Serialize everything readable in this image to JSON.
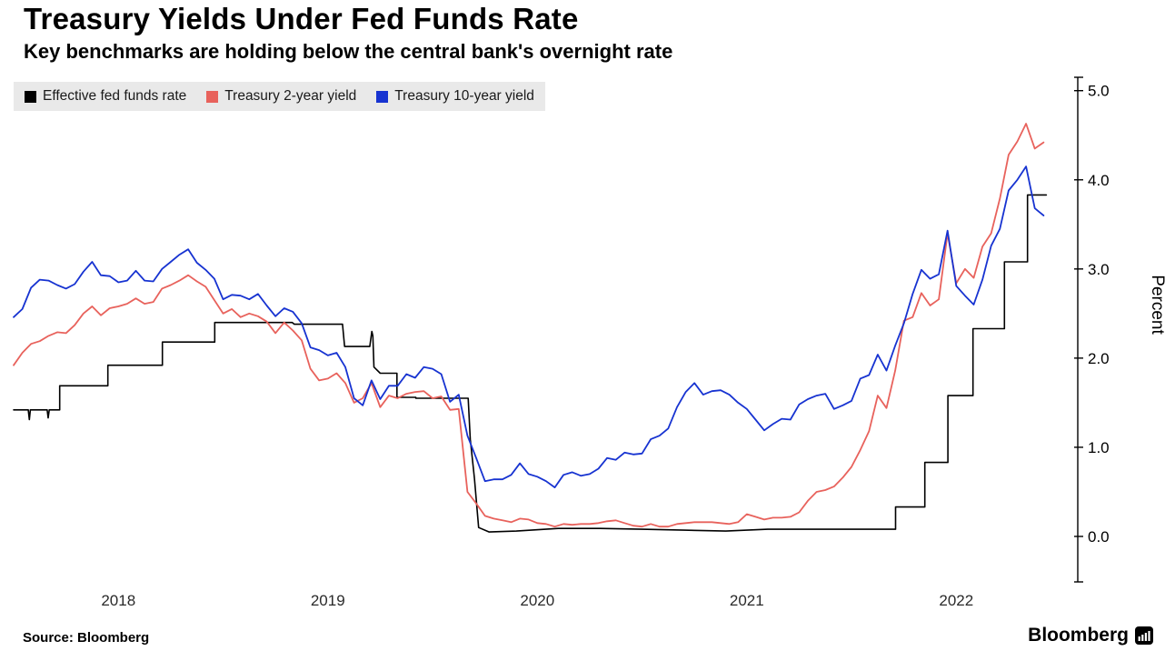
{
  "chart_data": {
    "type": "line",
    "title": "Treasury Yields Under Fed Funds Rate",
    "subtitle": "Key benchmarks are holding below the central bank's overnight rate",
    "ylabel": "Percent",
    "ylim": [
      -0.51,
      5.15
    ],
    "yticks": [
      0.0,
      1.0,
      2.0,
      3.0,
      4.0,
      5.0
    ],
    "x_range": [
      2018.0,
      2023.08
    ],
    "xticks": [
      {
        "value": 2018.5,
        "label": "2018"
      },
      {
        "value": 2019.5,
        "label": "2019"
      },
      {
        "value": 2020.5,
        "label": "2020"
      },
      {
        "value": 2021.5,
        "label": "2021"
      },
      {
        "value": 2022.5,
        "label": "2022"
      }
    ],
    "grid": false,
    "legend_position": "top-left",
    "series": [
      {
        "name": "Effective fed funds rate",
        "color": "#000000",
        "width": 1.6,
        "style": "step",
        "points": [
          [
            2018.0,
            1.42
          ],
          [
            2018.07,
            1.42
          ],
          [
            2018.075,
            1.31
          ],
          [
            2018.08,
            1.42
          ],
          [
            2018.16,
            1.42
          ],
          [
            2018.165,
            1.33
          ],
          [
            2018.17,
            1.42
          ],
          [
            2018.22,
            1.42
          ],
          [
            2018.22,
            1.69
          ],
          [
            2018.45,
            1.69
          ],
          [
            2018.45,
            1.92
          ],
          [
            2018.71,
            1.92
          ],
          [
            2018.71,
            2.18
          ],
          [
            2018.96,
            2.18
          ],
          [
            2018.96,
            2.4
          ],
          [
            2019.33,
            2.4
          ],
          [
            2019.34,
            2.38
          ],
          [
            2019.57,
            2.38
          ],
          [
            2019.58,
            2.13
          ],
          [
            2019.7,
            2.13
          ],
          [
            2019.71,
            2.3
          ],
          [
            2019.715,
            2.25
          ],
          [
            2019.72,
            1.9
          ],
          [
            2019.75,
            1.83
          ],
          [
            2019.83,
            1.83
          ],
          [
            2019.83,
            1.56
          ],
          [
            2019.92,
            1.56
          ],
          [
            2019.92,
            1.55
          ],
          [
            2020.17,
            1.55
          ],
          [
            2020.18,
            1.09
          ],
          [
            2020.2,
            0.65
          ],
          [
            2020.22,
            0.1
          ],
          [
            2020.27,
            0.05
          ],
          [
            2020.4,
            0.06
          ],
          [
            2020.6,
            0.09
          ],
          [
            2020.8,
            0.09
          ],
          [
            2021.0,
            0.08
          ],
          [
            2021.2,
            0.07
          ],
          [
            2021.4,
            0.06
          ],
          [
            2021.6,
            0.08
          ],
          [
            2021.8,
            0.08
          ],
          [
            2022.0,
            0.08
          ],
          [
            2022.21,
            0.08
          ],
          [
            2022.21,
            0.33
          ],
          [
            2022.35,
            0.33
          ],
          [
            2022.35,
            0.83
          ],
          [
            2022.46,
            0.83
          ],
          [
            2022.46,
            1.58
          ],
          [
            2022.58,
            1.58
          ],
          [
            2022.58,
            2.33
          ],
          [
            2022.73,
            2.33
          ],
          [
            2022.73,
            3.08
          ],
          [
            2022.84,
            3.08
          ],
          [
            2022.84,
            3.83
          ],
          [
            2022.93,
            3.83
          ]
        ]
      },
      {
        "name": "Treasury 2-year yield",
        "color": "#e8625c",
        "width": 1.8,
        "x_start": 2018.0,
        "x_step": 0.0416667,
        "values": [
          1.92,
          2.06,
          2.16,
          2.19,
          2.25,
          2.29,
          2.28,
          2.37,
          2.5,
          2.58,
          2.48,
          2.56,
          2.58,
          2.61,
          2.67,
          2.61,
          2.63,
          2.78,
          2.82,
          2.87,
          2.93,
          2.86,
          2.8,
          2.65,
          2.5,
          2.55,
          2.46,
          2.5,
          2.47,
          2.41,
          2.28,
          2.4,
          2.31,
          2.2,
          1.88,
          1.75,
          1.77,
          1.83,
          1.72,
          1.5,
          1.55,
          1.72,
          1.45,
          1.58,
          1.55,
          1.6,
          1.62,
          1.63,
          1.55,
          1.57,
          1.42,
          1.43,
          0.5,
          0.37,
          0.23,
          0.2,
          0.18,
          0.16,
          0.2,
          0.19,
          0.15,
          0.14,
          0.11,
          0.14,
          0.13,
          0.14,
          0.14,
          0.15,
          0.17,
          0.18,
          0.15,
          0.12,
          0.11,
          0.14,
          0.11,
          0.11,
          0.14,
          0.15,
          0.16,
          0.16,
          0.16,
          0.15,
          0.14,
          0.16,
          0.25,
          0.22,
          0.19,
          0.21,
          0.21,
          0.22,
          0.27,
          0.4,
          0.5,
          0.52,
          0.56,
          0.66,
          0.78,
          0.97,
          1.18,
          1.58,
          1.44,
          1.86,
          2.42,
          2.46,
          2.73,
          2.59,
          2.66,
          3.4,
          2.84,
          3.0,
          2.9,
          3.25,
          3.4,
          3.79,
          4.28,
          4.43,
          4.63,
          4.35,
          4.42
        ]
      },
      {
        "name": "Treasury 10-year yield",
        "color": "#1733d1",
        "width": 1.8,
        "x_start": 2018.0,
        "x_step": 0.0416667,
        "values": [
          2.46,
          2.55,
          2.79,
          2.88,
          2.87,
          2.82,
          2.78,
          2.83,
          2.97,
          3.08,
          2.93,
          2.92,
          2.85,
          2.87,
          2.98,
          2.87,
          2.86,
          3.0,
          3.08,
          3.16,
          3.22,
          3.07,
          2.99,
          2.89,
          2.66,
          2.71,
          2.7,
          2.66,
          2.72,
          2.59,
          2.47,
          2.56,
          2.52,
          2.39,
          2.12,
          2.09,
          2.03,
          2.06,
          1.9,
          1.55,
          1.47,
          1.75,
          1.54,
          1.69,
          1.69,
          1.82,
          1.78,
          1.9,
          1.88,
          1.82,
          1.51,
          1.59,
          1.13,
          0.88,
          0.62,
          0.64,
          0.64,
          0.69,
          0.82,
          0.7,
          0.67,
          0.62,
          0.55,
          0.69,
          0.72,
          0.68,
          0.7,
          0.76,
          0.88,
          0.86,
          0.94,
          0.92,
          0.93,
          1.09,
          1.13,
          1.21,
          1.45,
          1.62,
          1.72,
          1.59,
          1.63,
          1.64,
          1.59,
          1.5,
          1.43,
          1.31,
          1.19,
          1.26,
          1.32,
          1.31,
          1.48,
          1.54,
          1.58,
          1.6,
          1.43,
          1.47,
          1.52,
          1.77,
          1.81,
          2.04,
          1.86,
          2.14,
          2.39,
          2.72,
          2.99,
          2.89,
          2.94,
          3.43,
          2.81,
          2.7,
          2.6,
          2.88,
          3.26,
          3.45,
          3.88,
          4.0,
          4.15,
          3.68,
          3.6
        ]
      }
    ]
  },
  "legend": {
    "items": [
      {
        "label": "Effective fed funds rate",
        "color": "#000000"
      },
      {
        "label": "Treasury 2-year yield",
        "color": "#e8625c"
      },
      {
        "label": "Treasury 10-year yield",
        "color": "#1733d1"
      }
    ]
  },
  "footer": {
    "source": "Source: Bloomberg",
    "brand": "Bloomberg",
    "brand_icon": "bloomberg-terminal-icon"
  }
}
